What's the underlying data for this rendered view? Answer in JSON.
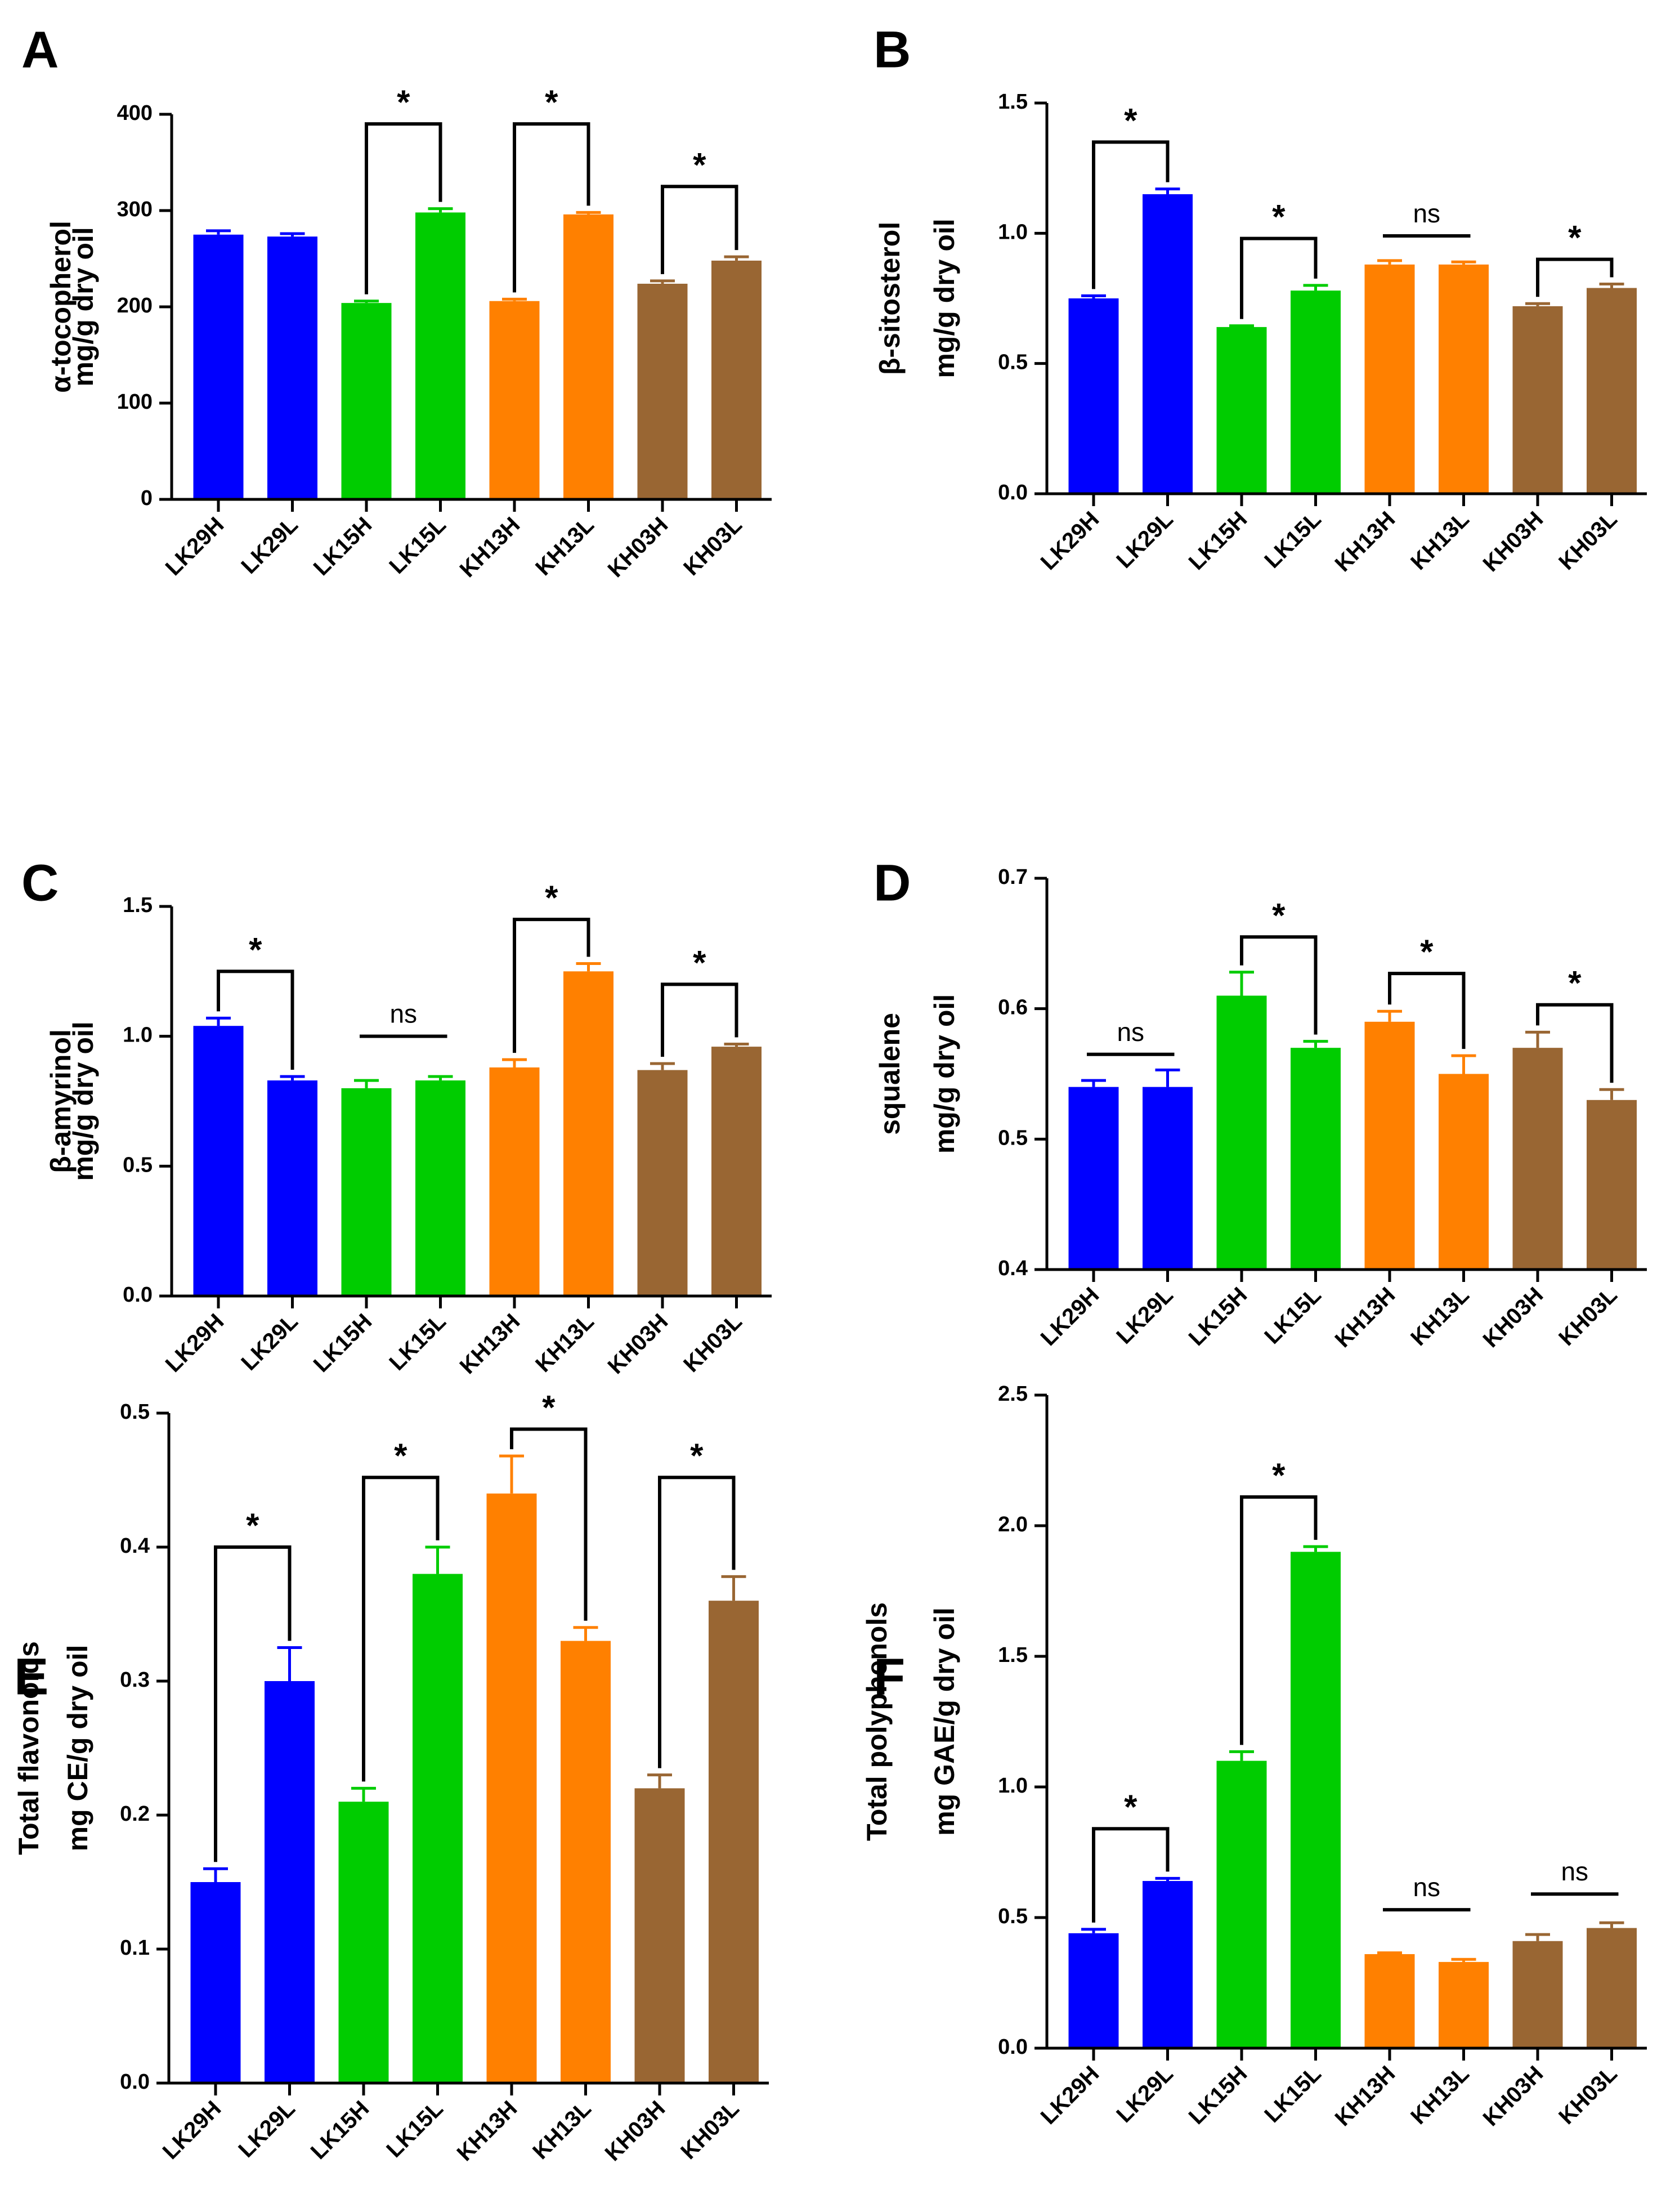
{
  "figure": {
    "title": ""
  },
  "colors": {
    "blue": "#0000ff",
    "green": "#00cc00",
    "orange": "#ff8000",
    "brown": "#996633"
  },
  "chart_data": [
    {
      "panel": "A",
      "type": "bar",
      "categories": [
        "LK29H",
        "LK29L",
        "LK15H",
        "LK15L",
        "KH13H",
        "KH13L",
        "KH03H",
        "KH03L"
      ],
      "values": [
        275,
        273,
        204,
        298,
        206,
        296,
        224,
        248
      ],
      "errors": [
        4,
        3,
        2,
        4,
        2,
        2,
        3,
        4
      ],
      "colors": [
        "#0000ff",
        "#0000ff",
        "#00cc00",
        "#00cc00",
        "#ff8000",
        "#ff8000",
        "#996633",
        "#996633"
      ],
      "ylabel": [
        "α-tocopherol",
        "mg/g dry oil"
      ],
      "ylim": [
        0,
        400
      ],
      "yticks": [
        0,
        100,
        200,
        300,
        400
      ],
      "ytick_labels": [
        "0",
        "100",
        "200",
        "300",
        "400"
      ],
      "annotations": [
        {
          "i": 2,
          "j": 3,
          "label": "*",
          "bracket": true,
          "y": 390
        },
        {
          "i": 4,
          "j": 5,
          "label": "*",
          "bracket": true,
          "y": 390
        },
        {
          "i": 6,
          "j": 7,
          "label": "*",
          "bracket": true,
          "y": 325
        }
      ]
    },
    {
      "panel": "B",
      "type": "bar",
      "categories": [
        "LK29H",
        "LK29L",
        "LK15H",
        "LK15L",
        "KH13H",
        "KH13L",
        "KH03H",
        "KH03L"
      ],
      "values": [
        0.75,
        1.15,
        0.64,
        0.78,
        0.88,
        0.88,
        0.72,
        0.79
      ],
      "errors": [
        0.01,
        0.02,
        0.005,
        0.02,
        0.015,
        0.01,
        0.01,
        0.015
      ],
      "colors": [
        "#0000ff",
        "#0000ff",
        "#00cc00",
        "#00cc00",
        "#ff8000",
        "#ff8000",
        "#996633",
        "#996633"
      ],
      "ylabel": [
        "β-sitosterol",
        "mg/g dry oil"
      ],
      "ylim": [
        0,
        1.5
      ],
      "yticks": [
        0,
        0.5,
        1.0,
        1.5
      ],
      "ytick_labels": [
        "0.0",
        "0.5",
        "1.0",
        "1.5"
      ],
      "annotations": [
        {
          "i": 0,
          "j": 1,
          "label": "*",
          "bracket": true,
          "y": 1.35
        },
        {
          "i": 2,
          "j": 3,
          "label": "*",
          "bracket": true,
          "y": 0.98
        },
        {
          "i": 4,
          "j": 5,
          "label": "ns",
          "bracket": false,
          "y": 0.99
        },
        {
          "i": 6,
          "j": 7,
          "label": "*",
          "bracket": true,
          "y": 0.9
        }
      ]
    },
    {
      "panel": "C",
      "type": "bar",
      "categories": [
        "LK29H",
        "LK29L",
        "LK15H",
        "LK15L",
        "KH13H",
        "KH13L",
        "KH03H",
        "KH03L"
      ],
      "values": [
        1.04,
        0.83,
        0.8,
        0.83,
        0.88,
        1.25,
        0.87,
        0.96
      ],
      "errors": [
        0.03,
        0.015,
        0.03,
        0.015,
        0.03,
        0.03,
        0.025,
        0.01
      ],
      "colors": [
        "#0000ff",
        "#0000ff",
        "#00cc00",
        "#00cc00",
        "#ff8000",
        "#ff8000",
        "#996633",
        "#996633"
      ],
      "ylabel": [
        "β-amyrinol",
        "mg/g dry oil"
      ],
      "ylim": [
        0,
        1.5
      ],
      "yticks": [
        0,
        0.5,
        1.0,
        1.5
      ],
      "ytick_labels": [
        "0.0",
        "0.5",
        "1.0",
        "1.5"
      ],
      "annotations": [
        {
          "i": 0,
          "j": 1,
          "label": "*",
          "bracket": true,
          "y": 1.25
        },
        {
          "i": 2,
          "j": 3,
          "label": "ns",
          "bracket": false,
          "y": 1.0
        },
        {
          "i": 4,
          "j": 5,
          "label": "*",
          "bracket": true,
          "y": 1.45
        },
        {
          "i": 6,
          "j": 7,
          "label": "*",
          "bracket": true,
          "y": 1.2
        }
      ]
    },
    {
      "panel": "D",
      "type": "bar",
      "categories": [
        "LK29H",
        "LK29L",
        "LK15H",
        "LK15L",
        "KH13H",
        "KH13L",
        "KH03H",
        "KH03L"
      ],
      "values": [
        0.54,
        0.54,
        0.61,
        0.57,
        0.59,
        0.55,
        0.57,
        0.53
      ],
      "errors": [
        0.005,
        0.013,
        0.018,
        0.005,
        0.008,
        0.014,
        0.012,
        0.008
      ],
      "colors": [
        "#0000ff",
        "#0000ff",
        "#00cc00",
        "#00cc00",
        "#ff8000",
        "#ff8000",
        "#996633",
        "#996633"
      ],
      "ylabel": [
        "squalene",
        "mg/g dry oil"
      ],
      "ylim": [
        0.4,
        0.7
      ],
      "yticks": [
        0.4,
        0.5,
        0.6,
        0.7
      ],
      "ytick_labels": [
        "0.4",
        "0.5",
        "0.6",
        "0.7"
      ],
      "annotations": [
        {
          "i": 0,
          "j": 1,
          "label": "ns",
          "bracket": false,
          "y": 0.565
        },
        {
          "i": 2,
          "j": 3,
          "label": "*",
          "bracket": true,
          "y": 0.655
        },
        {
          "i": 4,
          "j": 5,
          "label": "*",
          "bracket": true,
          "y": 0.627
        },
        {
          "i": 6,
          "j": 7,
          "label": "*",
          "bracket": true,
          "y": 0.603
        }
      ]
    },
    {
      "panel": "E",
      "type": "bar",
      "categories": [
        "LK29H",
        "LK29L",
        "LK15H",
        "LK15L",
        "KH13H",
        "KH13L",
        "KH03H",
        "KH03L"
      ],
      "values": [
        0.15,
        0.3,
        0.21,
        0.38,
        0.44,
        0.33,
        0.22,
        0.36
      ],
      "errors": [
        0.01,
        0.025,
        0.01,
        0.02,
        0.028,
        0.01,
        0.01,
        0.018
      ],
      "colors": [
        "#0000ff",
        "#0000ff",
        "#00cc00",
        "#00cc00",
        "#ff8000",
        "#ff8000",
        "#996633",
        "#996633"
      ],
      "ylabel": [
        "Total flavonoids",
        "mg CE/g dry oil"
      ],
      "ylim": [
        0,
        0.5
      ],
      "yticks": [
        0,
        0.1,
        0.2,
        0.3,
        0.4,
        0.5
      ],
      "ytick_labels": [
        "0.0",
        "0.1",
        "0.2",
        "0.3",
        "0.4",
        "0.5"
      ],
      "annotations": [
        {
          "i": 0,
          "j": 1,
          "label": "*",
          "bracket": true,
          "y": 0.4
        },
        {
          "i": 2,
          "j": 3,
          "label": "*",
          "bracket": true,
          "y": 0.452
        },
        {
          "i": 4,
          "j": 5,
          "label": "*",
          "bracket": true,
          "y": 0.488
        },
        {
          "i": 6,
          "j": 7,
          "label": "*",
          "bracket": true,
          "y": 0.452
        }
      ]
    },
    {
      "panel": "F",
      "type": "bar",
      "categories": [
        "LK29H",
        "LK29L",
        "LK15H",
        "LK15L",
        "KH13H",
        "KH13L",
        "KH03H",
        "KH03L"
      ],
      "values": [
        0.44,
        0.64,
        1.1,
        1.9,
        0.36,
        0.33,
        0.41,
        0.46
      ],
      "errors": [
        0.015,
        0.01,
        0.035,
        0.02,
        0.005,
        0.01,
        0.025,
        0.02
      ],
      "colors": [
        "#0000ff",
        "#0000ff",
        "#00cc00",
        "#00cc00",
        "#ff8000",
        "#ff8000",
        "#996633",
        "#996633"
      ],
      "ylabel": [
        "Total polyphenols",
        "mg GAE/g dry oil"
      ],
      "ylim": [
        0,
        2.5
      ],
      "yticks": [
        0,
        0.5,
        1.0,
        1.5,
        2.0,
        2.5
      ],
      "ytick_labels": [
        "0.0",
        "0.5",
        "1.0",
        "1.5",
        "2.0",
        "2.5"
      ],
      "annotations": [
        {
          "i": 0,
          "j": 1,
          "label": "*",
          "bracket": true,
          "y": 0.84
        },
        {
          "i": 2,
          "j": 3,
          "label": "*",
          "bracket": true,
          "y": 2.11
        },
        {
          "i": 4,
          "j": 5,
          "label": "ns",
          "bracket": false,
          "y": 0.53
        },
        {
          "i": 6,
          "j": 7,
          "label": "ns",
          "bracket": false,
          "y": 0.59
        }
      ]
    }
  ]
}
